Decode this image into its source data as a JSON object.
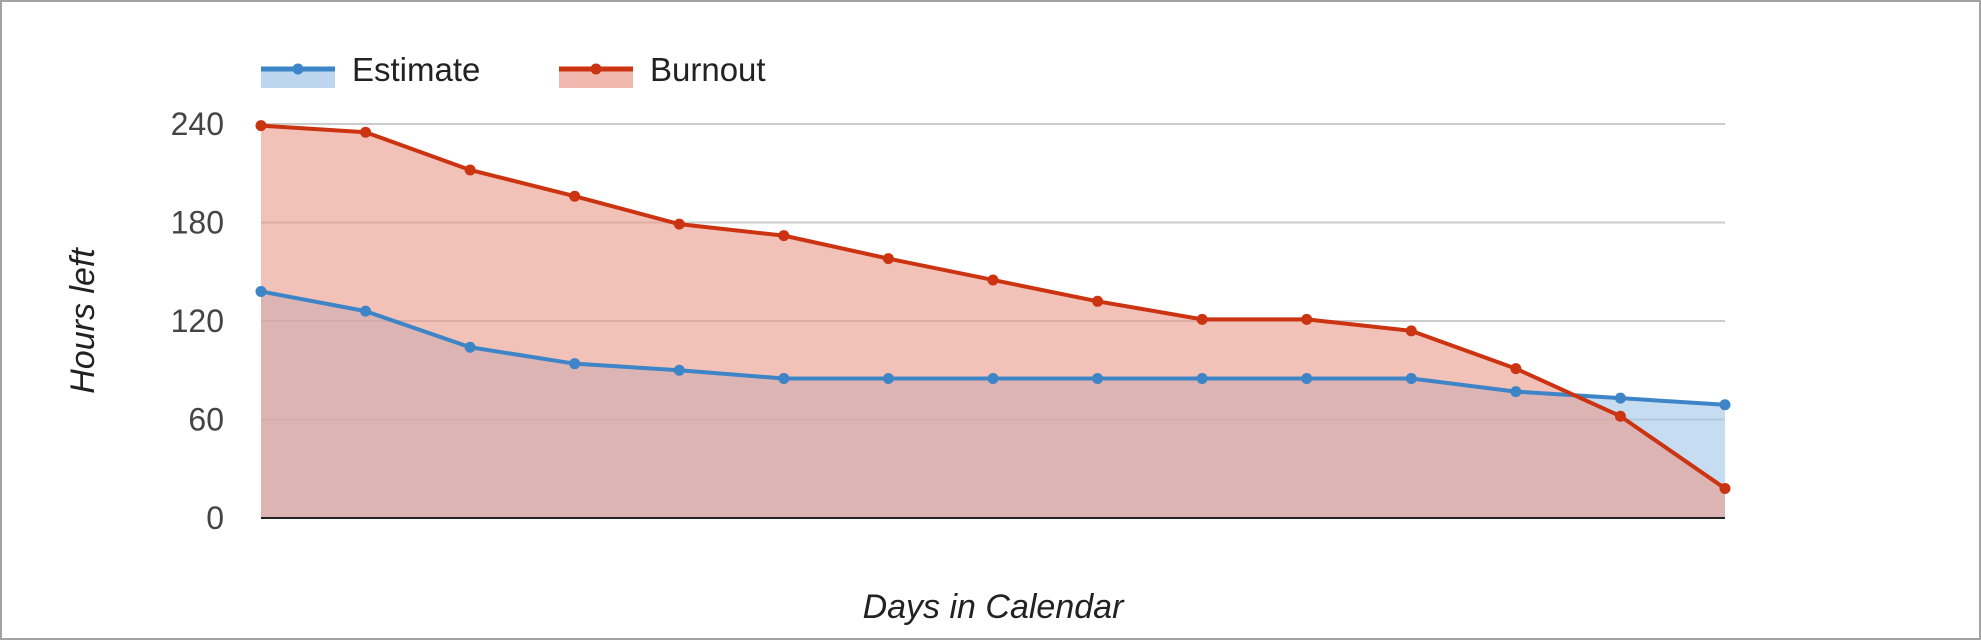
{
  "chart_data": {
    "type": "area",
    "title": "",
    "xlabel": "Days in Calendar",
    "ylabel": "Hours left",
    "ylim": [
      0,
      240
    ],
    "yticks": [
      0,
      60,
      120,
      180,
      240
    ],
    "grid": true,
    "legend_position": "top-left",
    "x": [
      1,
      2,
      3,
      4,
      5,
      6,
      7,
      8,
      9,
      10,
      11,
      12,
      13,
      14,
      15
    ],
    "series": [
      {
        "name": "Estimate",
        "color": "#3d85c6",
        "fill": "#9fc5e8",
        "values": [
          138,
          126,
          104,
          94,
          90,
          85,
          85,
          85,
          85,
          85,
          85,
          85,
          77,
          73,
          69
        ]
      },
      {
        "name": "Burnout",
        "color": "#cc3311",
        "fill": "#ea9a8b",
        "values": [
          239,
          235,
          212,
          196,
          179,
          172,
          158,
          145,
          132,
          121,
          121,
          114,
          91,
          62,
          18
        ]
      }
    ]
  }
}
